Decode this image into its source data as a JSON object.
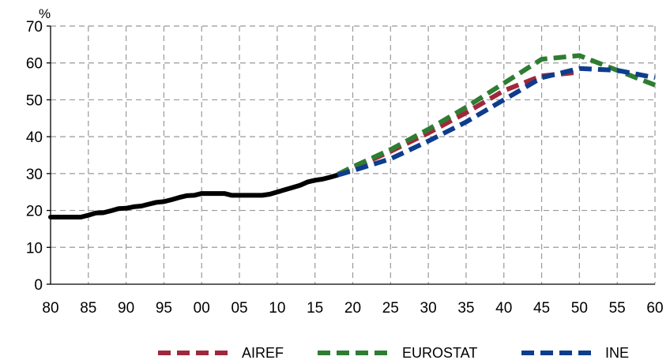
{
  "chart_data": {
    "type": "line",
    "ylabel": "%",
    "xlabel": "",
    "ylim": [
      0,
      70
    ],
    "yticks": [
      0,
      10,
      20,
      30,
      40,
      50,
      60,
      70
    ],
    "xlim": [
      1980,
      2060
    ],
    "xticks": [
      1980,
      1985,
      1990,
      1995,
      2000,
      2005,
      2010,
      2015,
      2020,
      2025,
      2030,
      2035,
      2040,
      2045,
      2050,
      2055,
      2060
    ],
    "xtick_labels": [
      "80",
      "85",
      "90",
      "95",
      "00",
      "05",
      "10",
      "15",
      "20",
      "25",
      "30",
      "35",
      "40",
      "45",
      "50",
      "55",
      "60"
    ],
    "grid": true,
    "legend_position": "bottom",
    "series": [
      {
        "name": "",
        "color": "#000000",
        "style": "solid",
        "x": [
          1980,
          1981,
          1982,
          1983,
          1984,
          1985,
          1986,
          1987,
          1988,
          1989,
          1990,
          1991,
          1992,
          1993,
          1994,
          1995,
          1996,
          1997,
          1998,
          1999,
          2000,
          2001,
          2002,
          2003,
          2004,
          2005,
          2006,
          2007,
          2008,
          2009,
          2010,
          2011,
          2012,
          2013,
          2014,
          2015,
          2016,
          2017,
          2018
        ],
        "y": [
          18.2,
          18.2,
          18.2,
          18.2,
          18.2,
          18.7,
          19.3,
          19.4,
          19.9,
          20.5,
          20.6,
          21.0,
          21.2,
          21.7,
          22.2,
          22.4,
          22.9,
          23.5,
          24.0,
          24.1,
          24.6,
          24.6,
          24.6,
          24.6,
          24.1,
          24.1,
          24.1,
          24.1,
          24.1,
          24.4,
          25.0,
          25.6,
          26.2,
          26.8,
          27.7,
          28.2,
          28.5,
          29.0,
          29.6
        ]
      },
      {
        "name": "AIREF",
        "color": "#a0283c",
        "style": "dashed",
        "x": [
          2018,
          2020,
          2025,
          2030,
          2035,
          2040,
          2045,
          2050
        ],
        "y": [
          29.6,
          31.5,
          36.0,
          41.0,
          46.5,
          52.5,
          56.5,
          57.5
        ]
      },
      {
        "name": "EUROSTAT",
        "color": "#2e7d32",
        "style": "dashed",
        "x": [
          2018,
          2020,
          2025,
          2030,
          2035,
          2040,
          2045,
          2050,
          2055,
          2060
        ],
        "y": [
          29.8,
          31.8,
          36.5,
          42.0,
          48.0,
          54.5,
          61.0,
          62.0,
          58.0,
          54.0
        ]
      },
      {
        "name": "INE",
        "color": "#0d3d8c",
        "style": "dashed",
        "x": [
          2018,
          2020,
          2025,
          2030,
          2035,
          2040,
          2045,
          2050,
          2055,
          2060
        ],
        "y": [
          29.6,
          30.8,
          34.0,
          38.8,
          44.0,
          50.0,
          56.0,
          58.5,
          58.0,
          56.0
        ]
      }
    ]
  }
}
